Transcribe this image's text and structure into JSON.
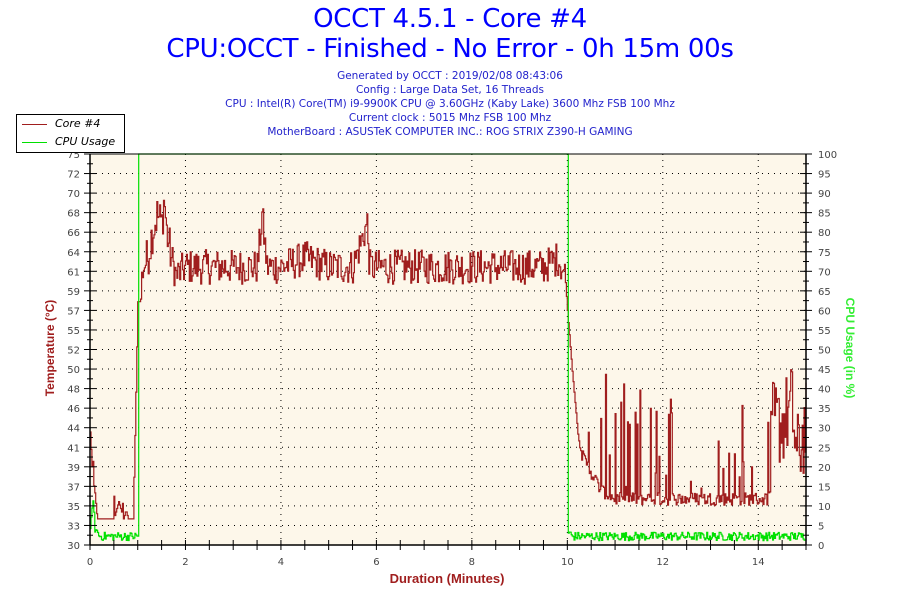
{
  "header": {
    "title": "OCCT 4.5.1 - Core #4",
    "subtitle": "CPU:OCCT - Finished - No Error - 0h 15m 00s",
    "info_lines": [
      "Generated by OCCT : 2019/02/08 08:43:06",
      "Config : Large Data Set, 16 Threads",
      "CPU : Intel(R) Core(TM) i9-9900K CPU @ 3.60GHz (Kaby Lake) 3600 Mhz FSB 100 Mhz",
      "Current clock : 5015 Mhz FSB 100 Mhz",
      "MotherBoard : ASUSTeK COMPUTER INC.: ROG STRIX Z390-H GAMING"
    ]
  },
  "legend": {
    "items": [
      {
        "label": "Core #4",
        "color": "#a01e1e"
      },
      {
        "label": "CPU Usage",
        "color": "#00e000"
      }
    ]
  },
  "axes": {
    "left_title": "Temperature (°C)",
    "right_title": "CPU Usage (in %)",
    "x_title": "Duration (Minutes)"
  },
  "colors": {
    "plot_bg": "#fdf7ea",
    "temp_line": "#a01e1e",
    "cpu_line": "#00e000",
    "title": "#0000ff",
    "info": "#2222cc",
    "left_axis_title": "#a01e1e",
    "right_axis_title": "#33ee33"
  },
  "chart_data": {
    "type": "line",
    "title": "OCCT 4.5.1 - Core #4",
    "subtitle": "CPU:OCCT - Finished - No Error - 0h 15m 00s",
    "xlabel": "Duration (Minutes)",
    "ylabel": "Temperature (°C)",
    "y2label": "CPU Usage (in %)",
    "xlim": [
      0,
      15
    ],
    "ylim": [
      30,
      75
    ],
    "y2lim": [
      0,
      100
    ],
    "x_ticks": [
      0,
      2,
      4,
      6,
      8,
      10,
      12,
      14
    ],
    "y_ticks": [
      30,
      33,
      35,
      37,
      39,
      41,
      44,
      46,
      48,
      50,
      52,
      55,
      57,
      59,
      61,
      64,
      66,
      68,
      70,
      72,
      75
    ],
    "y2_ticks": [
      0,
      5,
      10,
      15,
      20,
      25,
      30,
      35,
      40,
      45,
      50,
      55,
      60,
      65,
      70,
      75,
      80,
      85,
      90,
      95,
      100
    ],
    "grid": true,
    "legend_position": "top-left",
    "series": [
      {
        "name": "Core #4",
        "axis": "left",
        "color": "#a01e1e",
        "x": [
          0,
          0.05,
          0.1,
          0.15,
          0.2,
          0.3,
          0.4,
          0.5,
          0.6,
          0.7,
          0.75,
          0.8,
          0.9,
          0.95,
          1.0,
          1.05,
          1.1,
          1.2,
          1.3,
          1.4,
          1.5,
          1.55,
          1.6,
          1.7,
          1.8,
          2.0,
          2.5,
          3.0,
          3.5,
          3.6,
          3.7,
          4.0,
          4.5,
          5.0,
          5.5,
          5.8,
          5.85,
          5.9,
          6.5,
          7.0,
          7.5,
          8.0,
          8.5,
          9.0,
          9.5,
          9.8,
          9.95,
          10.0,
          10.1,
          10.2,
          10.3,
          10.5,
          10.7,
          11.0,
          11.5,
          12.0,
          12.5,
          13.0,
          13.5,
          14.0,
          14.2,
          14.3,
          14.5,
          14.7,
          14.8,
          15.0
        ],
        "values": [
          43,
          38,
          36,
          33,
          33,
          33,
          33,
          33,
          35,
          33,
          34,
          33,
          33,
          45,
          58,
          58,
          62,
          63,
          66,
          68,
          67,
          70,
          66,
          63,
          61,
          62,
          62,
          62,
          62,
          68,
          62,
          62,
          63,
          62,
          62,
          67,
          62,
          62,
          62,
          62,
          62,
          62,
          62,
          62,
          62,
          63,
          61,
          57,
          50,
          44,
          40,
          38,
          36,
          35,
          35,
          35,
          35,
          35,
          35,
          35,
          35,
          44,
          44,
          46,
          40,
          44
        ]
      },
      {
        "name": "CPU Usage",
        "axis": "right",
        "color": "#00e000",
        "x": [
          0,
          0.05,
          0.1,
          0.2,
          0.5,
          0.95,
          1.0,
          1.02,
          1.5,
          5.0,
          9.95,
          10.0,
          10.02,
          10.1,
          11.0,
          12.0,
          13.0,
          14.0,
          15.0
        ],
        "values": [
          3,
          12,
          4,
          2,
          2,
          2,
          2,
          100,
          100,
          100,
          100,
          100,
          3,
          2,
          2,
          2,
          2,
          2,
          2
        ]
      }
    ]
  }
}
